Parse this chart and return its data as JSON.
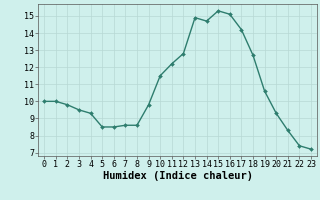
{
  "x": [
    0,
    1,
    2,
    3,
    4,
    5,
    6,
    7,
    8,
    9,
    10,
    11,
    12,
    13,
    14,
    15,
    16,
    17,
    18,
    19,
    20,
    21,
    22,
    23
  ],
  "y": [
    10.0,
    10.0,
    9.8,
    9.5,
    9.3,
    8.5,
    8.5,
    8.6,
    8.6,
    9.8,
    11.5,
    12.2,
    12.8,
    14.9,
    14.7,
    15.3,
    15.1,
    14.2,
    12.7,
    10.6,
    9.3,
    8.3,
    7.4,
    7.2
  ],
  "line_color": "#2e7d6e",
  "marker": "D",
  "markersize": 2.0,
  "linewidth": 1.0,
  "bg_color": "#cff0ec",
  "grid_color": "#b8d8d4",
  "xlabel": "Humidex (Indice chaleur)",
  "xlabel_fontsize": 7.5,
  "tick_fontsize": 6.0,
  "xlim": [
    -0.5,
    23.5
  ],
  "ylim": [
    6.8,
    15.7
  ],
  "yticks": [
    7,
    8,
    9,
    10,
    11,
    12,
    13,
    14,
    15
  ],
  "xticks": [
    0,
    1,
    2,
    3,
    4,
    5,
    6,
    7,
    8,
    9,
    10,
    11,
    12,
    13,
    14,
    15,
    16,
    17,
    18,
    19,
    20,
    21,
    22,
    23
  ]
}
